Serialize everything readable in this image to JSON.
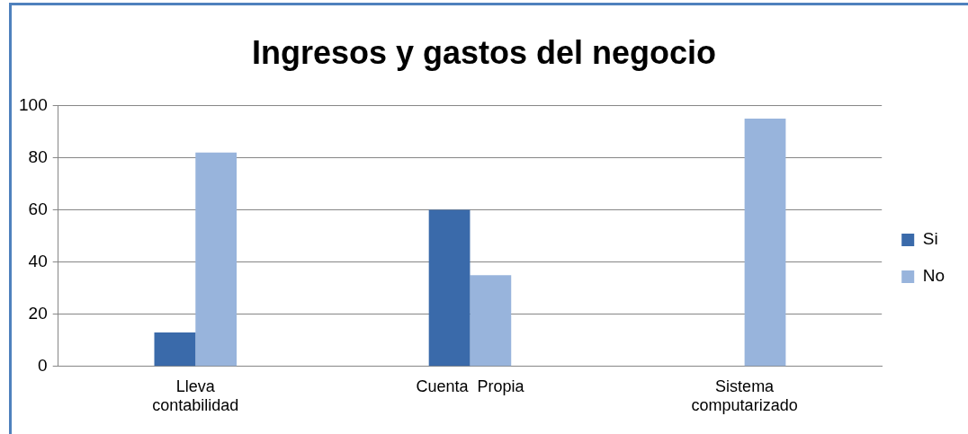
{
  "chart_data": {
    "type": "bar",
    "title": "Ingresos y gastos del negocio",
    "categories": [
      "Lleva contabilidad",
      "Cuenta  Propia",
      "Sistema computarizado"
    ],
    "series": [
      {
        "name": "Si",
        "color": "#3a6aaa",
        "values": [
          13,
          60,
          0
        ]
      },
      {
        "name": "No",
        "color": "#98b4dc",
        "values": [
          82,
          35,
          95
        ]
      }
    ],
    "ylim": [
      0,
      100
    ],
    "yticks": [
      0,
      20,
      40,
      60,
      80,
      100
    ],
    "grid": "y",
    "legend": "right"
  }
}
